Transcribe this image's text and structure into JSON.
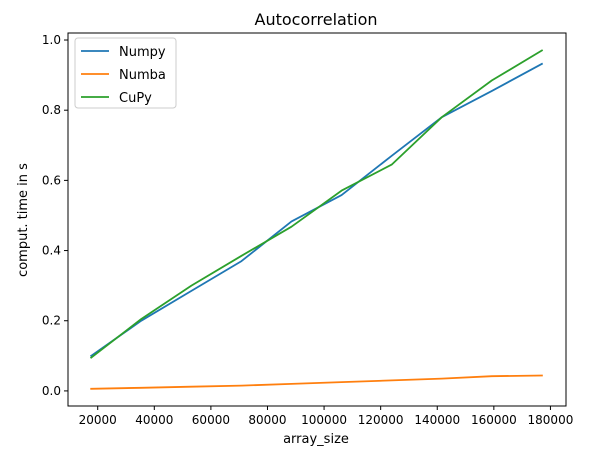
{
  "chart_data": {
    "type": "line",
    "title": "Autocorrelation",
    "xlabel": "array_size",
    "ylabel": "comput. time in s",
    "xlim": [
      9500,
      185500
    ],
    "ylim": [
      -0.043,
      1.02
    ],
    "xticks": [
      20000,
      40000,
      60000,
      80000,
      100000,
      120000,
      140000,
      160000,
      180000
    ],
    "xtick_labels": [
      "20000",
      "40000",
      "60000",
      "80000",
      "100000",
      "120000",
      "140000",
      "160000",
      "180000"
    ],
    "yticks": [
      0.0,
      0.2,
      0.4,
      0.6,
      0.8,
      1.0
    ],
    "ytick_labels": [
      "0.0",
      "0.2",
      "0.4",
      "0.6",
      "0.8",
      "1.0"
    ],
    "grid": false,
    "legend_position": "top-left",
    "x": [
      17700,
      35400,
      53100,
      70800,
      88500,
      106200,
      123900,
      141600,
      159300,
      177000
    ],
    "series": [
      {
        "name": "Numpy",
        "color": "#1f77b4",
        "values": [
          0.1,
          0.2,
          0.285,
          0.37,
          0.483,
          0.558,
          0.67,
          0.78,
          0.855,
          0.932
        ]
      },
      {
        "name": "Numba",
        "color": "#ff7f0e",
        "values": [
          0.006,
          0.009,
          0.012,
          0.015,
          0.02,
          0.025,
          0.03,
          0.035,
          0.042,
          0.044
        ]
      },
      {
        "name": "CuPy",
        "color": "#2ca02c",
        "values": [
          0.095,
          0.205,
          0.3,
          0.385,
          0.468,
          0.571,
          0.645,
          0.78,
          0.885,
          0.97
        ]
      }
    ]
  }
}
